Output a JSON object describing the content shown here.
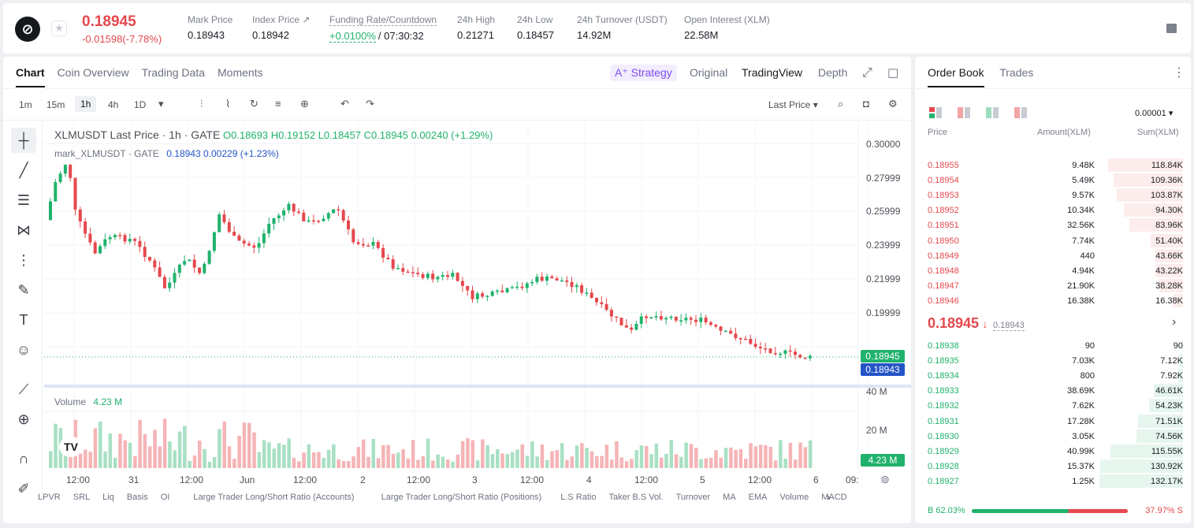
{
  "header": {
    "price": "0.18945",
    "change": "-0.01598(-7.78%)",
    "stats": [
      {
        "label": "Mark Price",
        "value": "0.18943",
        "x": 234
      },
      {
        "label": "Index Price ↗",
        "value": "0.18942",
        "x": 316
      },
      {
        "label": "Funding Rate/Countdown",
        "value": "",
        "x": 414
      },
      {
        "label": "24h High",
        "value": "0.21271",
        "x": 576
      },
      {
        "label": "24h Low",
        "value": "0.18457",
        "x": 652
      },
      {
        "label": "24h Turnover (USDT)",
        "value": "14.92M",
        "x": 728
      },
      {
        "label": "Open Interest (XLM)",
        "value": "22.58M",
        "x": 864
      }
    ],
    "funding_rate": "+0.0100%",
    "countdown": "/ 07:30:32"
  },
  "chart_tabs": [
    "Chart",
    "Coin Overview",
    "Trading Data",
    "Moments"
  ],
  "chart_views": {
    "strategy": "A⁺ Strategy",
    "original": "Original",
    "tradingview": "TradingView",
    "depth": "Depth"
  },
  "timeframes": [
    "1m",
    "15m",
    "1h",
    "4h",
    "1D"
  ],
  "last_price_select": "Last Price",
  "legend": {
    "symbol": "XLMUSDT Last Price · 1h · GATE",
    "o": "O0.18693",
    "h": "H0.19152",
    "l": "L0.18457",
    "c": "C0.18945",
    "chg": "0.00240 (+1.29%)",
    "mark": "mark_XLMUSDT · GATE",
    "mark_v": "0.18943",
    "mark_c": "0.00229 (+1.23%)",
    "vol_label": "Volume",
    "vol_value": "4.23 M"
  },
  "y_axis": [
    "0.30000",
    "0.27999",
    "0.25999",
    "0.23999",
    "0.21999",
    "0.19999"
  ],
  "price_tags": {
    "last": "0.18945",
    "mark": "0.18943",
    "vol_tag": "4.23 M",
    "vol_40": "40 M",
    "vol_20": "20 M"
  },
  "x_axis": [
    "12:00",
    "31",
    "12:00",
    "Jun",
    "12:00",
    "2",
    "12:00",
    "3",
    "12:00",
    "4",
    "12:00",
    "5",
    "12:00",
    "6",
    "09:"
  ],
  "indicators": [
    "LPVR",
    "SRL",
    "Liq",
    "Basis",
    "OI",
    "Large Trader Long/Short Ratio (Accounts)",
    "Large Trader Long/Short Ratio (Positions)",
    "L.S Ratio",
    "Taker B.S Vol.",
    "Turnover",
    "MA",
    "EMA",
    "Volume",
    "MACD"
  ],
  "orderbook": {
    "tabs": [
      "Order Book",
      "Trades"
    ],
    "precision": "0.00001",
    "headers": [
      "Price",
      "Amount(XLM)",
      "Sum(XLM)"
    ],
    "asks": [
      [
        "0.18955",
        "9.48K",
        "118.84K",
        0.9
      ],
      [
        "0.18954",
        "5.49K",
        "109.36K",
        0.83
      ],
      [
        "0.18953",
        "9.57K",
        "103.87K",
        0.79
      ],
      [
        "0.18952",
        "10.34K",
        "94.30K",
        0.71
      ],
      [
        "0.18951",
        "32.56K",
        "83.96K",
        0.64
      ],
      [
        "0.18950",
        "7.74K",
        "51.40K",
        0.39
      ],
      [
        "0.18949",
        "440",
        "43.66K",
        0.33
      ],
      [
        "0.18948",
        "4.94K",
        "43.22K",
        0.33
      ],
      [
        "0.18947",
        "21.90K",
        "38.28K",
        0.29
      ],
      [
        "0.18946",
        "16.38K",
        "16.38K",
        0.12
      ]
    ],
    "mid_price": "0.18945",
    "mid_arrow": "↓",
    "mid_mark": "0.18943",
    "bids": [
      [
        "0.18938",
        "90",
        "90",
        0.01
      ],
      [
        "0.18935",
        "7.03K",
        "7.12K",
        0.05
      ],
      [
        "0.18934",
        "800",
        "7.92K",
        0.06
      ],
      [
        "0.18933",
        "38.69K",
        "46.61K",
        0.35
      ],
      [
        "0.18932",
        "7.62K",
        "54.23K",
        0.41
      ],
      [
        "0.18931",
        "17.28K",
        "71.51K",
        0.54
      ],
      [
        "0.18930",
        "3.05K",
        "74.56K",
        0.56
      ],
      [
        "0.18929",
        "40.99K",
        "115.55K",
        0.87
      ],
      [
        "0.18928",
        "15.37K",
        "130.92K",
        0.99
      ],
      [
        "0.18927",
        "1.25K",
        "132.17K",
        1.0
      ]
    ],
    "buy_ratio": "B 62.03%",
    "sell_ratio": "37.97% S",
    "buy_frac": 0.6203
  },
  "colors": {
    "up": "#20b26c",
    "down": "#e5484d"
  }
}
